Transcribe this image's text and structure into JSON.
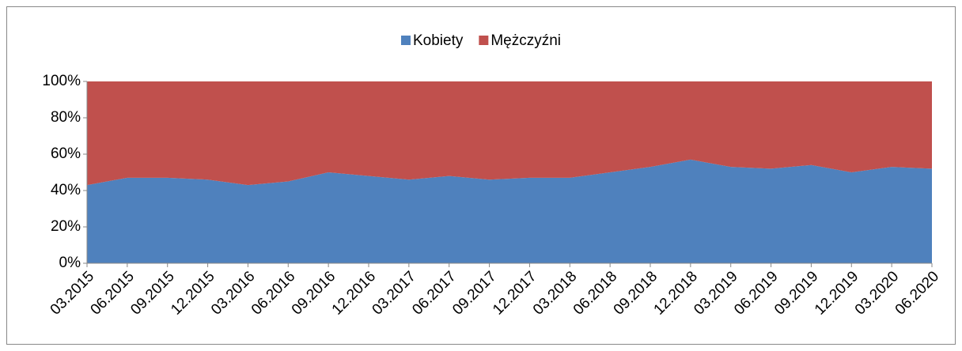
{
  "chart_data": {
    "type": "stacked_area_100",
    "categories": [
      "03.2015",
      "06.2015",
      "09.2015",
      "12.2015",
      "03.2016",
      "06.2016",
      "09.2016",
      "12.2016",
      "03.2017",
      "06.2017",
      "09.2017",
      "12.2017",
      "03.2018",
      "06.2018",
      "09.2018",
      "12.2018",
      "03.2019",
      "06.2019",
      "09.2019",
      "12.2019",
      "03.2020",
      "06.2020"
    ],
    "series": [
      {
        "name": "Kobiety",
        "color": "#4f81bd",
        "values": [
          43,
          47,
          47,
          46,
          43,
          45,
          50,
          48,
          46,
          48,
          46,
          47,
          47,
          50,
          53,
          57,
          53,
          52,
          54,
          50,
          53,
          52
        ]
      },
      {
        "name": "Mężczyźni",
        "color": "#c0504d",
        "values": [
          57,
          53,
          53,
          54,
          57,
          55,
          50,
          52,
          54,
          52,
          54,
          53,
          53,
          50,
          47,
          43,
          47,
          48,
          46,
          50,
          47,
          48
        ]
      }
    ],
    "ylim": [
      0,
      100
    ],
    "yticks": [
      {
        "value": 0,
        "label": "0%"
      },
      {
        "value": 20,
        "label": "20%"
      },
      {
        "value": 40,
        "label": "40%"
      },
      {
        "value": 60,
        "label": "60%"
      },
      {
        "value": 80,
        "label": "80%"
      },
      {
        "value": 100,
        "label": "100%"
      }
    ],
    "legend": "top"
  }
}
